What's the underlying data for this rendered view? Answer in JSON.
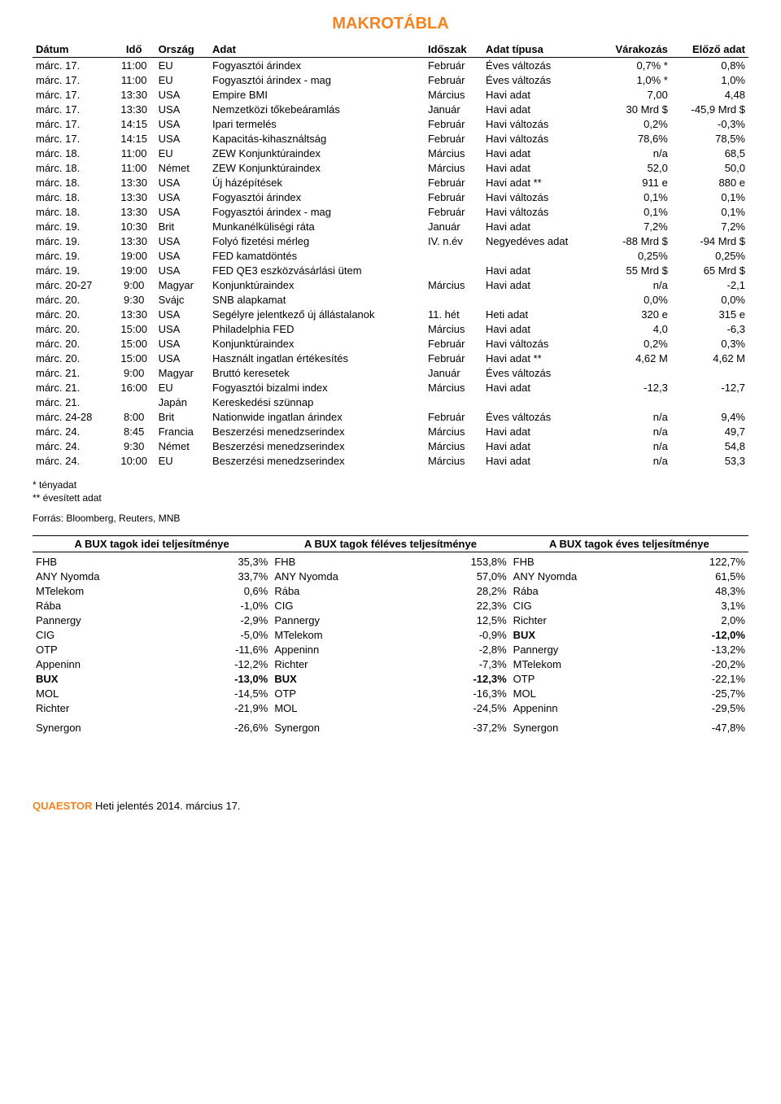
{
  "title": "MAKROTÁBLA",
  "columns": [
    "Dátum",
    "Idő",
    "Ország",
    "Adat",
    "Időszak",
    "Adat típusa",
    "Várakozás",
    "Előző adat"
  ],
  "rows": [
    [
      "márc. 17.",
      "11:00",
      "EU",
      "Fogyasztói árindex",
      "Február",
      "Éves változás",
      "0,7% *",
      "0,8%"
    ],
    [
      "márc. 17.",
      "11:00",
      "EU",
      "Fogyasztói árindex - mag",
      "Február",
      "Éves változás",
      "1,0% *",
      "1,0%"
    ],
    [
      "márc. 17.",
      "13:30",
      "USA",
      "Empire BMI",
      "Március",
      "Havi adat",
      "7,00",
      "4,48"
    ],
    [
      "márc. 17.",
      "13:30",
      "USA",
      "Nemzetközi tőkebeáramlás",
      "Január",
      "Havi adat",
      "30 Mrd $",
      "-45,9 Mrd $"
    ],
    [
      "márc. 17.",
      "14:15",
      "USA",
      "Ipari termelés",
      "Február",
      "Havi változás",
      "0,2%",
      "-0,3%"
    ],
    [
      "márc. 17.",
      "14:15",
      "USA",
      "Kapacitás-kihasználtság",
      "Február",
      "Havi változás",
      "78,6%",
      "78,5%"
    ],
    [
      "márc. 18.",
      "11:00",
      "EU",
      "ZEW Konjunktúraindex",
      "Március",
      "Havi adat",
      "n/a",
      "68,5"
    ],
    [
      "márc. 18.",
      "11:00",
      "Német",
      "ZEW Konjunktúraindex",
      "Március",
      "Havi adat",
      "52,0",
      "50,0"
    ],
    [
      "márc. 18.",
      "13:30",
      "USA",
      "Új házépítések",
      "Február",
      "Havi adat **",
      "911 e",
      "880 e"
    ],
    [
      "márc. 18.",
      "13:30",
      "USA",
      "Fogyasztói árindex",
      "Február",
      "Havi változás",
      "0,1%",
      "0,1%"
    ],
    [
      "márc. 18.",
      "13:30",
      "USA",
      "Fogyasztói árindex - mag",
      "Február",
      "Havi változás",
      "0,1%",
      "0,1%"
    ],
    [
      "márc. 19.",
      "10:30",
      "Brit",
      "Munkanélküliségi ráta",
      "Január",
      "Havi adat",
      "7,2%",
      "7,2%"
    ],
    [
      "márc. 19.",
      "13:30",
      "USA",
      "Folyó fizetési mérleg",
      "IV. n.év",
      "Negyedéves adat",
      "-88 Mrd $",
      "-94 Mrd $"
    ],
    [
      "márc. 19.",
      "19:00",
      "USA",
      "FED kamatdöntés",
      "",
      "",
      "0,25%",
      "0,25%"
    ],
    [
      "márc. 19.",
      "19:00",
      "USA",
      "FED QE3 eszközvásárlási ütem",
      "",
      "Havi adat",
      "55 Mrd $",
      "65 Mrd $"
    ],
    [
      "márc. 20-27",
      "9:00",
      "Magyar",
      "Konjunktúraindex",
      "Március",
      "Havi adat",
      "n/a",
      "-2,1"
    ],
    [
      "márc. 20.",
      "9:30",
      "Svájc",
      "SNB alapkamat",
      "",
      "",
      "0,0%",
      "0,0%"
    ],
    [
      "márc. 20.",
      "13:30",
      "USA",
      "Segélyre jelentkező új állástalanok",
      "11. hét",
      "Heti adat",
      "320 e",
      "315 e"
    ],
    [
      "márc. 20.",
      "15:00",
      "USA",
      "Philadelphia FED",
      "Március",
      "Havi adat",
      "4,0",
      "-6,3"
    ],
    [
      "márc. 20.",
      "15:00",
      "USA",
      "Konjunktúraindex",
      "Február",
      "Havi változás",
      "0,2%",
      "0,3%"
    ],
    [
      "márc. 20.",
      "15:00",
      "USA",
      "Használt ingatlan értékesítés",
      "Február",
      "Havi adat **",
      "4,62 M",
      "4,62 M"
    ],
    [
      "márc. 21.",
      "9:00",
      "Magyar",
      "Bruttó keresetek",
      "Január",
      "Éves változás",
      "",
      ""
    ],
    [
      "márc. 21.",
      "16:00",
      "EU",
      "Fogyasztói bizalmi index",
      "Március",
      "Havi adat",
      "-12,3",
      "-12,7"
    ],
    [
      "márc. 21.",
      "",
      "Japán",
      "Kereskedési szünnap",
      "",
      "",
      "",
      ""
    ],
    [
      "márc. 24-28",
      "8:00",
      "Brit",
      "Nationwide ingatlan árindex",
      "Február",
      "Éves változás",
      "n/a",
      "9,4%"
    ],
    [
      "márc. 24.",
      "8:45",
      "Francia",
      "Beszerzési menedzserindex",
      "Március",
      "Havi adat",
      "n/a",
      "49,7"
    ],
    [
      "márc. 24.",
      "9:30",
      "Német",
      "Beszerzési menedzserindex",
      "Március",
      "Havi adat",
      "n/a",
      "54,8"
    ],
    [
      "márc. 24.",
      "10:00",
      "EU",
      "Beszerzési menedzserindex",
      "Március",
      "Havi adat",
      "n/a",
      "53,3"
    ]
  ],
  "footnote1": "* tényadat",
  "footnote2": "** évesített adat",
  "source": "Forrás: Bloomberg, Reuters, MNB",
  "perf_headers": [
    "A BUX tagok idei teljesítménye",
    "A BUX tagok féléves teljesítménye",
    "A BUX tagok éves teljesítménye"
  ],
  "perf": [
    [
      {
        "n": "FHB",
        "v": "35,3%"
      },
      {
        "n": "ANY Nyomda",
        "v": "33,7%"
      },
      {
        "n": "MTelekom",
        "v": "0,6%"
      },
      {
        "n": "Rába",
        "v": "-1,0%"
      },
      {
        "n": "Pannergy",
        "v": "-2,9%"
      },
      {
        "n": "CIG",
        "v": "-5,0%"
      },
      {
        "n": "OTP",
        "v": "-11,6%"
      },
      {
        "n": "Appeninn",
        "v": "-12,2%"
      },
      {
        "n": "BUX",
        "v": "-13,0%",
        "b": true
      },
      {
        "n": "MOL",
        "v": "-14,5%"
      },
      {
        "n": "Richter",
        "v": "-21,9%"
      },
      {
        "n": "",
        "v": ""
      },
      {
        "n": "Synergon",
        "v": "-26,6%"
      }
    ],
    [
      {
        "n": "FHB",
        "v": "153,8%"
      },
      {
        "n": "ANY Nyomda",
        "v": "57,0%"
      },
      {
        "n": "Rába",
        "v": "28,2%"
      },
      {
        "n": "CIG",
        "v": "22,3%"
      },
      {
        "n": "Pannergy",
        "v": "12,5%"
      },
      {
        "n": "MTelekom",
        "v": "-0,9%"
      },
      {
        "n": "Appeninn",
        "v": "-2,8%"
      },
      {
        "n": "Richter",
        "v": "-7,3%"
      },
      {
        "n": "BUX",
        "v": "-12,3%",
        "b": true
      },
      {
        "n": "OTP",
        "v": "-16,3%"
      },
      {
        "n": "MOL",
        "v": "-24,5%"
      },
      {
        "n": "",
        "v": ""
      },
      {
        "n": "Synergon",
        "v": "-37,2%"
      }
    ],
    [
      {
        "n": "FHB",
        "v": "122,7%"
      },
      {
        "n": "ANY Nyomda",
        "v": "61,5%"
      },
      {
        "n": "Rába",
        "v": "48,3%"
      },
      {
        "n": "CIG",
        "v": "3,1%"
      },
      {
        "n": "Richter",
        "v": "2,0%"
      },
      {
        "n": "BUX",
        "v": "-12,0%",
        "b": true
      },
      {
        "n": "Pannergy",
        "v": "-13,2%"
      },
      {
        "n": "MTelekom",
        "v": "-20,2%"
      },
      {
        "n": "OTP",
        "v": "-22,1%"
      },
      {
        "n": "MOL",
        "v": "-25,7%"
      },
      {
        "n": "Appeninn",
        "v": "-29,5%"
      },
      {
        "n": "",
        "v": ""
      },
      {
        "n": "Synergon",
        "v": "-47,8%"
      }
    ]
  ],
  "footer_brand": "QUAESTOR",
  "footer_text": " Heti jelentés 2014. március 17."
}
